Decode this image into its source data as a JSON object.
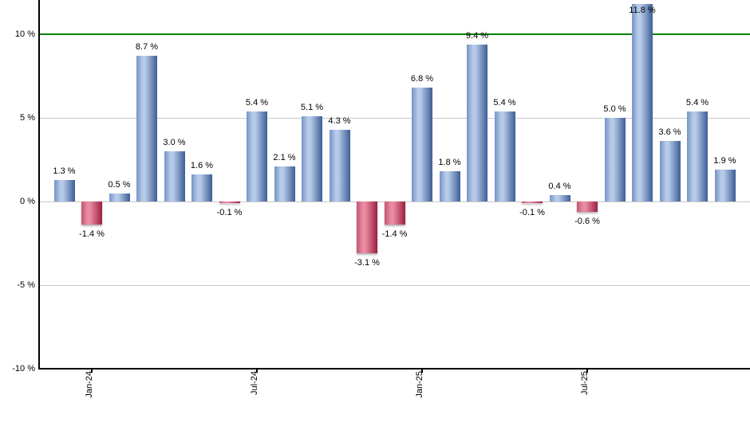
{
  "chart_data": {
    "type": "bar",
    "unit": "%",
    "values": [
      1.3,
      -1.4,
      0.5,
      8.7,
      3.0,
      1.6,
      -0.1,
      5.4,
      2.1,
      5.1,
      4.3,
      -3.1,
      -1.4,
      6.8,
      1.8,
      9.4,
      5.4,
      -0.1,
      0.4,
      -0.6,
      5.0,
      11.8,
      3.6,
      5.4,
      1.9
    ],
    "bar_labels": [
      "1.3 %",
      "-1.4 %",
      "0.5 %",
      "8.7 %",
      "3.0 %",
      "1.6 %",
      "-0.1 %",
      "5.4 %",
      "2.1 %",
      "5.1 %",
      "4.3 %",
      "-3.1 %",
      "-1.4 %",
      "6.8 %",
      "1.8 %",
      "9.4 %",
      "5.4 %",
      "-0.1 %",
      "0.4 %",
      "-0.6 %",
      "5.0 %",
      "11.8 %",
      "3.6 %",
      "5.4 %",
      "1.9 %"
    ],
    "x_ticks": [
      {
        "bar_index": 1,
        "label": "Jan-24"
      },
      {
        "bar_index": 7,
        "label": "Jul-24"
      },
      {
        "bar_index": 13,
        "label": "Jan-25"
      },
      {
        "bar_index": 19,
        "label": "Jul-25"
      }
    ],
    "y_ticks": [
      {
        "value": 10,
        "label": "10 %"
      },
      {
        "value": 5,
        "label": "5 %"
      },
      {
        "value": 0,
        "label": "0 %"
      },
      {
        "value": -5,
        "label": "-5 %"
      },
      {
        "value": -10,
        "label": "-10 %"
      }
    ],
    "ylim": [
      -10,
      12.1
    ],
    "threshold_line": {
      "value": 10,
      "color": "#008000"
    },
    "grid": true,
    "legend": false,
    "colors": {
      "positive_bar_edge": "#7593c4",
      "positive_bar_light": "#b7cbe9",
      "positive_bar_dark": "#3d5e96",
      "negative_bar_edge": "#c25672",
      "negative_bar_light": "#ea8ba3",
      "negative_bar_dark": "#9b2040",
      "gridline": "#c8c8c8",
      "axis": "#000000",
      "label_text": "#000000",
      "background": "#ffffff"
    }
  }
}
